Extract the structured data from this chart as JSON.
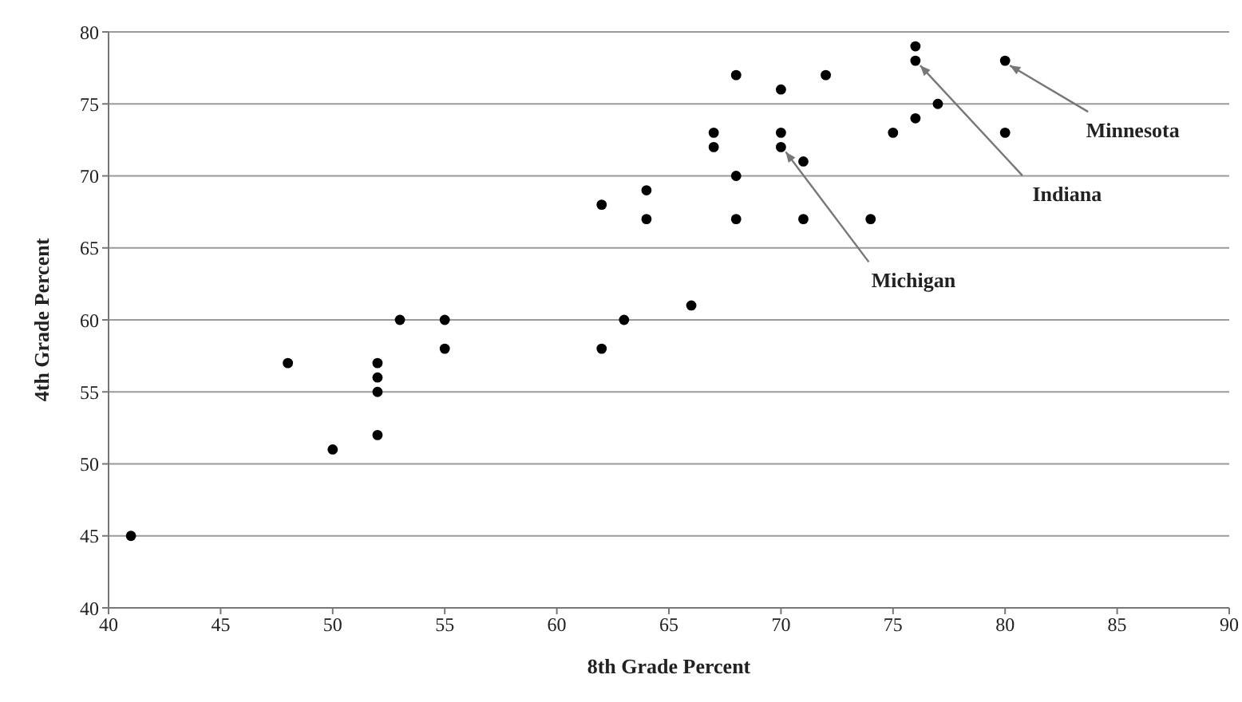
{
  "chart_data": {
    "type": "scatter",
    "xlabel": "8th Grade Percent",
    "ylabel": "4th Grade Percent",
    "x": [
      41,
      48,
      50,
      52,
      52,
      52,
      52,
      53,
      55,
      55,
      62,
      62,
      63,
      64,
      64,
      66,
      67,
      67,
      68,
      68,
      68,
      70,
      70,
      70,
      71,
      71,
      72,
      74,
      75,
      76,
      76,
      76,
      77,
      80,
      80
    ],
    "series": [
      {
        "color": "#000000",
        "values": [
          45,
          57,
          51,
          57,
          56,
          55,
          52,
          60,
          60,
          58,
          68,
          58,
          60,
          69,
          67,
          61,
          73,
          72,
          77,
          70,
          67,
          76,
          73,
          72,
          71,
          67,
          77,
          67,
          73,
          79,
          78,
          74,
          75,
          78,
          73
        ]
      }
    ],
    "xlim": [
      40,
      90
    ],
    "xticks": [
      40,
      45,
      50,
      55,
      60,
      65,
      70,
      75,
      80,
      85,
      90
    ],
    "ylim": [
      40,
      80
    ],
    "yticks": [
      40,
      45,
      50,
      55,
      60,
      65,
      70,
      75,
      80
    ],
    "grid": "y",
    "marker": "circle",
    "legend": false,
    "annotations": [
      {
        "text": "Michigan",
        "x": 70,
        "y": 72
      },
      {
        "text": "Indiana",
        "x": 76,
        "y": 78
      },
      {
        "text": "Minnesota",
        "x": 80,
        "y": 78
      }
    ]
  }
}
